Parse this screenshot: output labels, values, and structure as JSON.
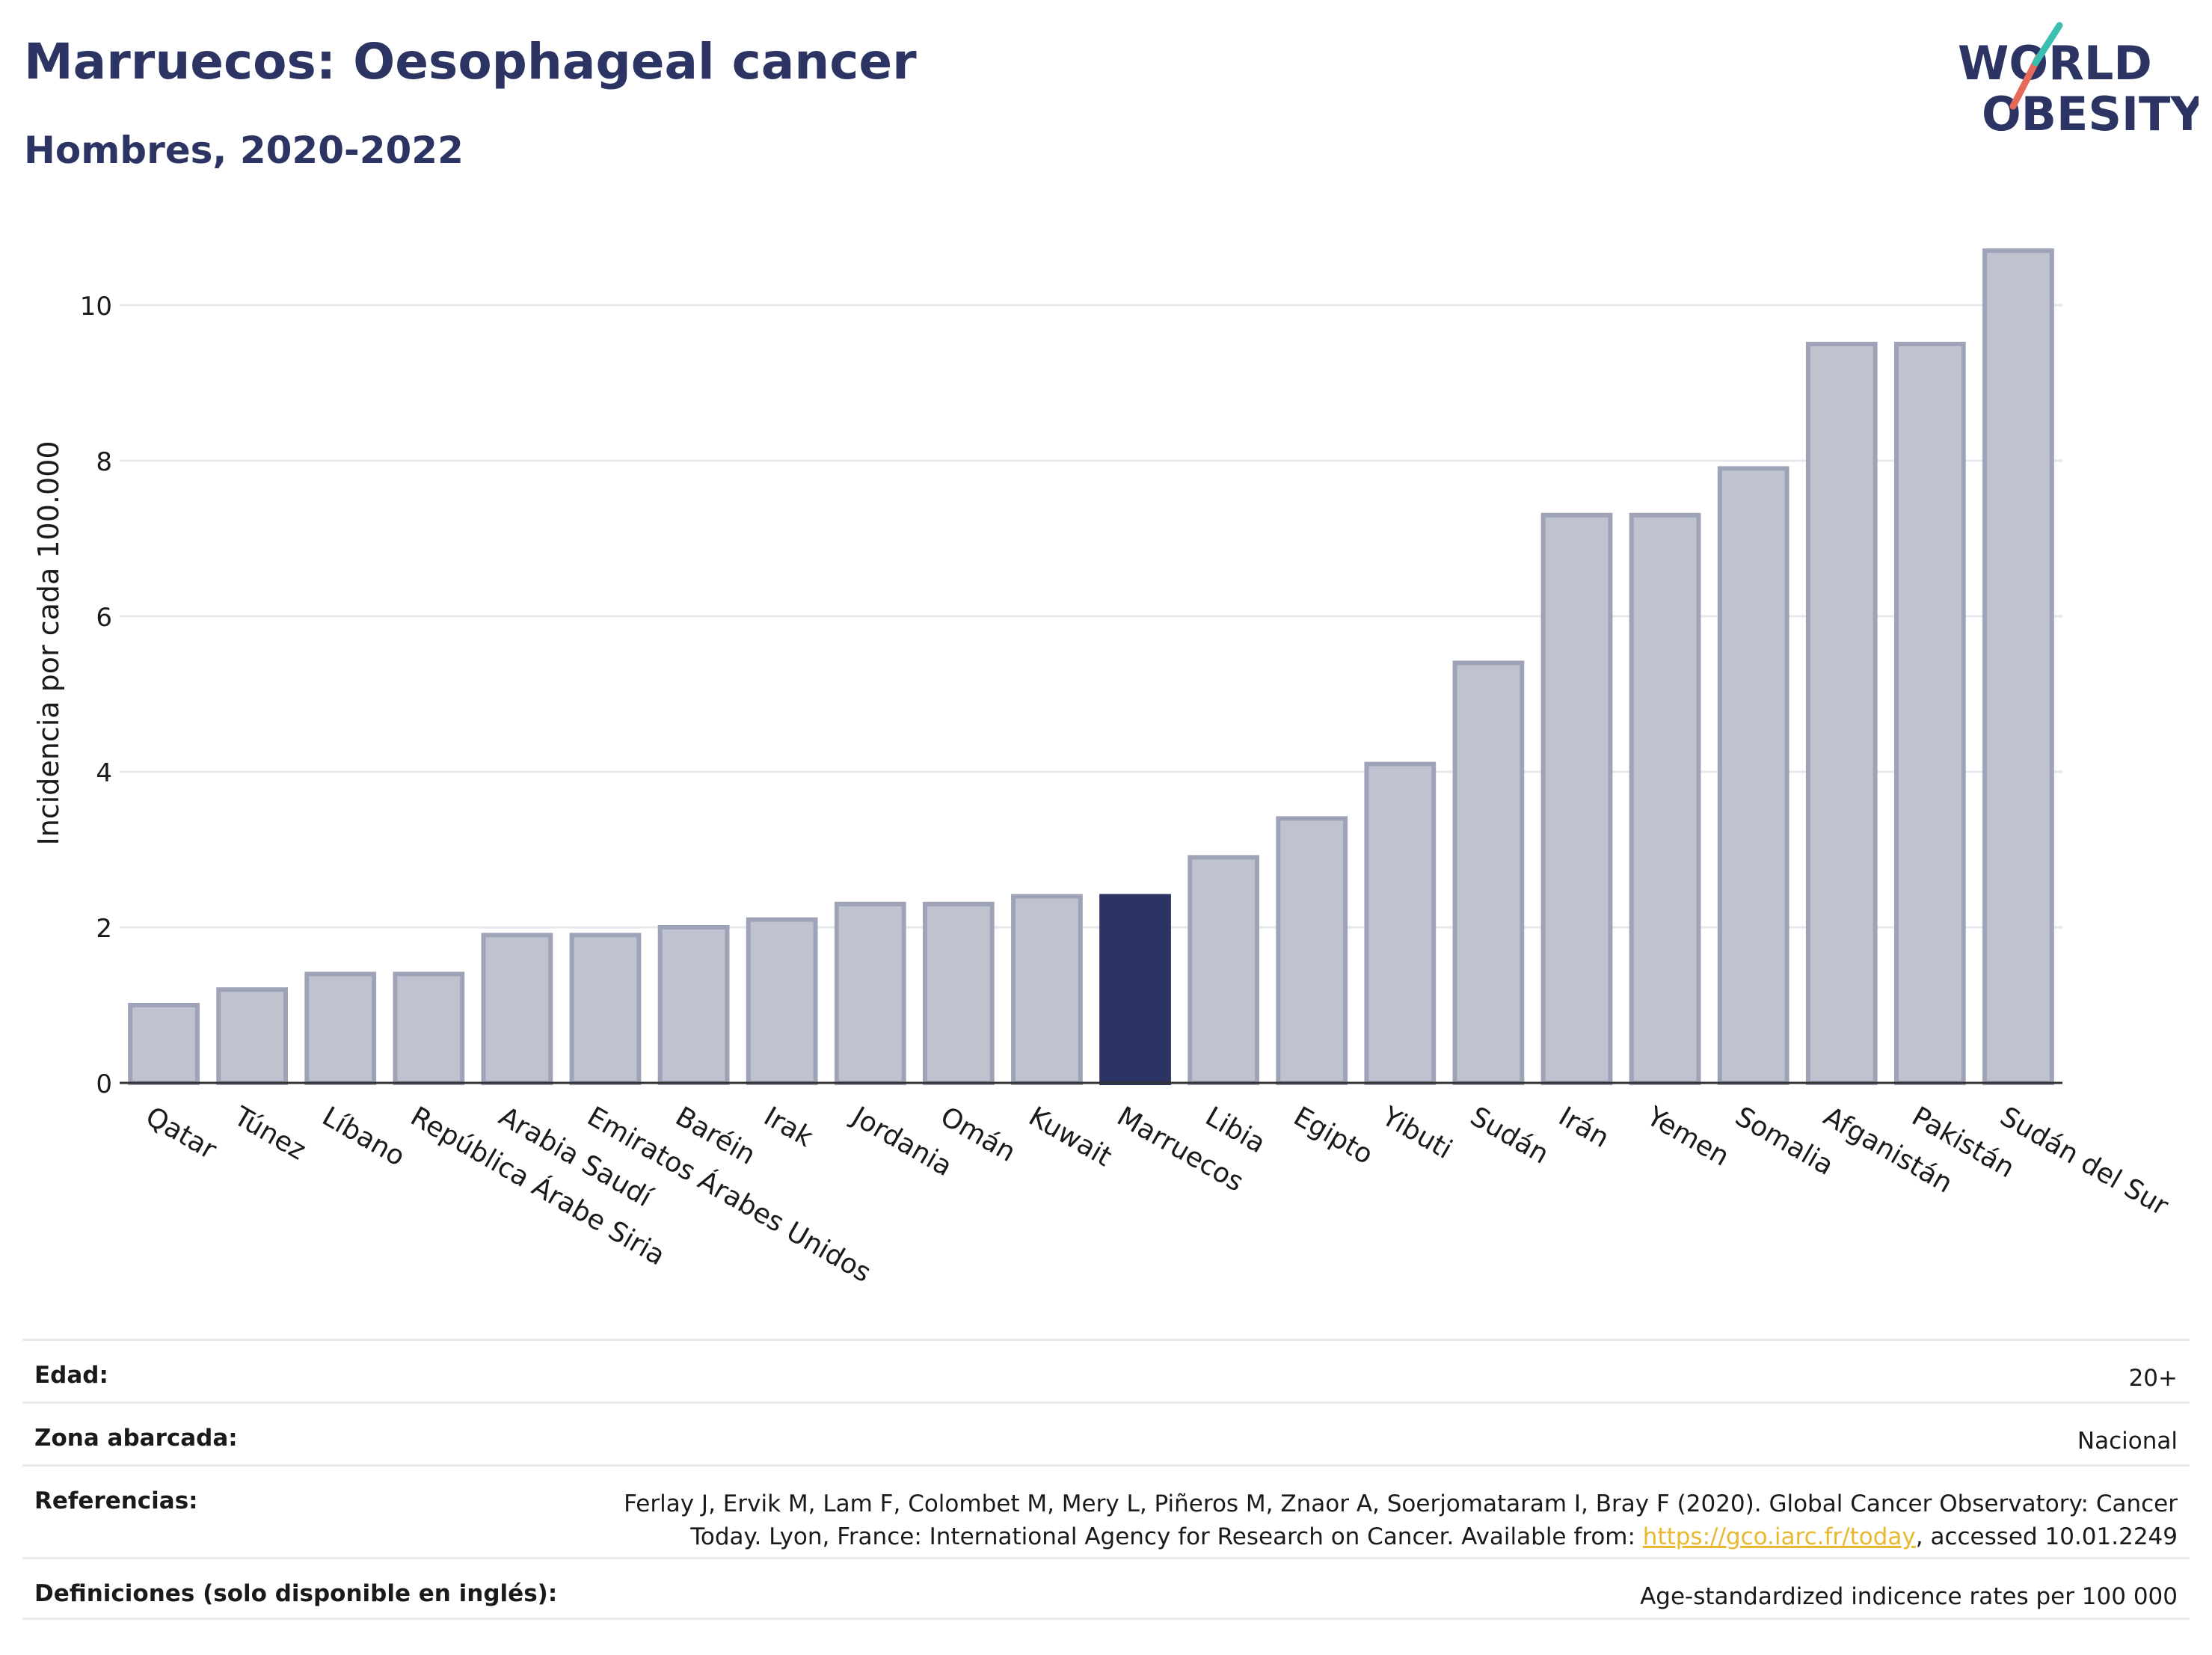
{
  "header": {
    "title": "Marruecos: Oesophageal cancer",
    "subtitle": "Hombres, 2020-2022"
  },
  "logo": {
    "line1": "WORLD",
    "line2": "OBESITY"
  },
  "chart_data": {
    "type": "bar",
    "ylabel": "Incidencia por cada 100.000",
    "ylim": [
      0,
      11
    ],
    "yticks": [
      0,
      2,
      4,
      6,
      8,
      10
    ],
    "grid": true,
    "categories": [
      "Qatar",
      "Túnez",
      "Líbano",
      "República Árabe Siria",
      "Arabia Saudí",
      "Emiratos Árabes Unidos",
      "Baréin",
      "Irak",
      "Jordania",
      "Omán",
      "Kuwait",
      "Marruecos",
      "Libia",
      "Egipto",
      "Yibuti",
      "Sudán",
      "Irán",
      "Yemen",
      "Somalia",
      "Afganistán",
      "Pakistán",
      "Sudán del Sur"
    ],
    "values": [
      1.0,
      1.2,
      1.4,
      1.4,
      1.9,
      1.9,
      2.0,
      2.1,
      2.3,
      2.3,
      2.4,
      2.4,
      2.9,
      3.4,
      4.1,
      5.4,
      7.3,
      7.3,
      7.9,
      9.5,
      9.5,
      10.7
    ],
    "highlight": "Marruecos",
    "colors": {
      "bar": "#bfc3d0",
      "bar_border": "#9ea3b8",
      "highlight": "#2b3462",
      "grid": "#e6e7ec",
      "axis": "#333333"
    }
  },
  "meta": {
    "age_label": "Edad:",
    "age_value": "20+",
    "zone_label": "Zona abarcada:",
    "zone_value": "Nacional",
    "refs_label": "Referencias:",
    "refs_line1": "Ferlay J, Ervik M, Lam F, Colombet M, Mery L, Piñeros M, Znaor A, Soerjomataram I, Bray F (2020). Global Cancer Observatory: Cancer",
    "refs_line2_pre": "Today. Lyon, France: International Agency for Research on Cancer. Available from: ",
    "refs_link": "https://gco.iarc.fr/today",
    "refs_line2_post": ", accessed 10.01.2249",
    "defs_label": "Definiciones (solo disponible en inglés):",
    "defs_value": "Age-standardized indicence rates per 100 000"
  }
}
